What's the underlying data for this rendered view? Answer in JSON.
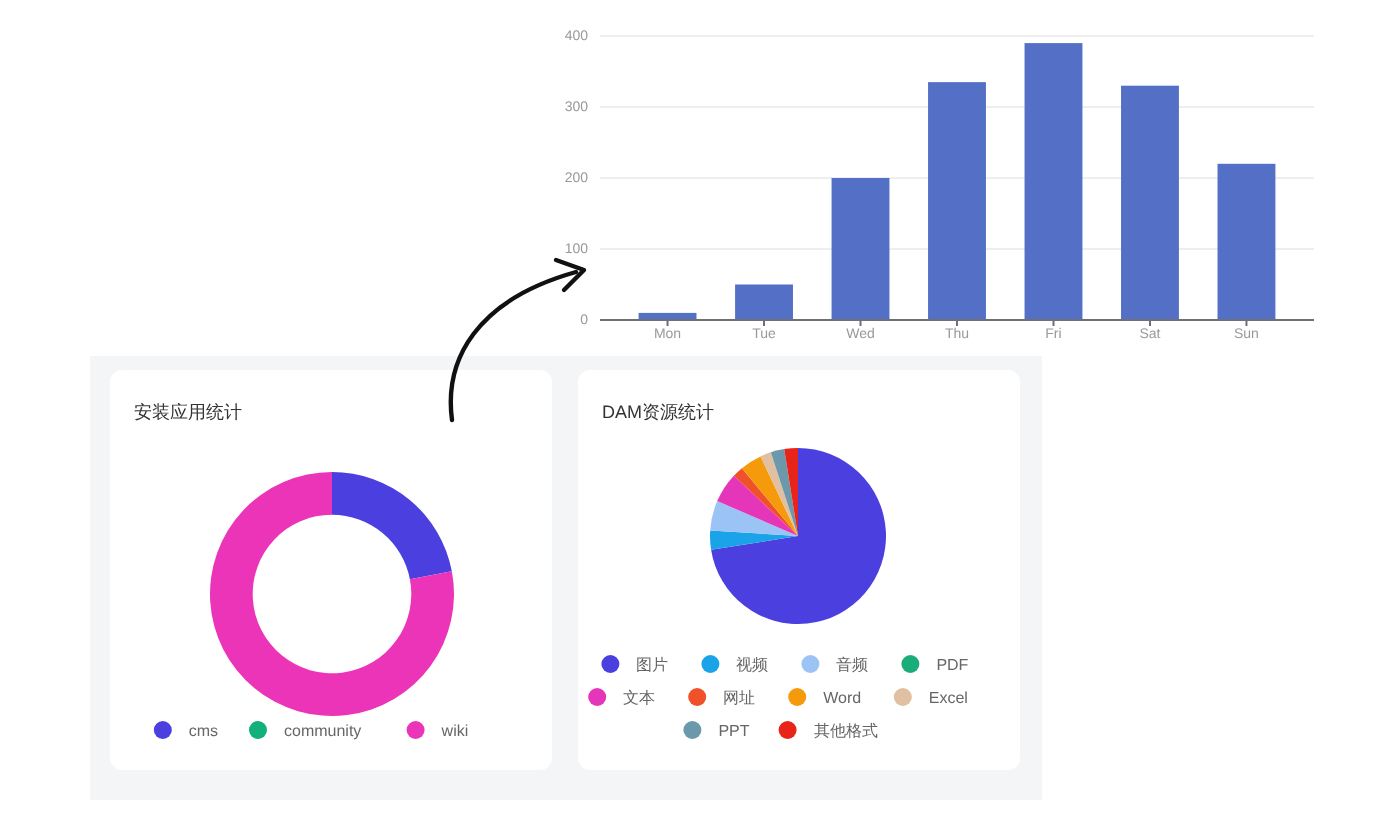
{
  "chart_data": [
    {
      "type": "bar",
      "categories": [
        "Mon",
        "Tue",
        "Wed",
        "Thu",
        "Fri",
        "Sat",
        "Sun"
      ],
      "values": [
        10,
        50,
        200,
        335,
        390,
        330,
        220
      ],
      "color": "#5470c6",
      "ylim": [
        0,
        400
      ],
      "yticks": [
        0,
        100,
        200,
        300,
        400
      ],
      "grid": "y"
    },
    {
      "type": "donut",
      "title": "安装应用统计",
      "categories": [
        "cms",
        "community",
        "wiki"
      ],
      "values": [
        22,
        0,
        78
      ],
      "colors": [
        "#4b3fe0",
        "#12b07a",
        "#eb34b8"
      ],
      "legend": "bottom"
    },
    {
      "type": "pie",
      "title": "DAM资源统计",
      "categories": [
        "图片",
        "视频",
        "音频",
        "PDF",
        "文本",
        "网址",
        "Word",
        "Excel",
        "PPT",
        "其他格式"
      ],
      "values": [
        72.5,
        3.5,
        5.5,
        0,
        5.5,
        2,
        4,
        2,
        2.5,
        2.5
      ],
      "colors": [
        "#4b3fe0",
        "#1aa3e8",
        "#9cc3f5",
        "#1aad7a",
        "#e535b8",
        "#f0502a",
        "#f59a0a",
        "#e0c0a0",
        "#6b98aa",
        "#e8231a"
      ],
      "legend": "bottom"
    }
  ]
}
